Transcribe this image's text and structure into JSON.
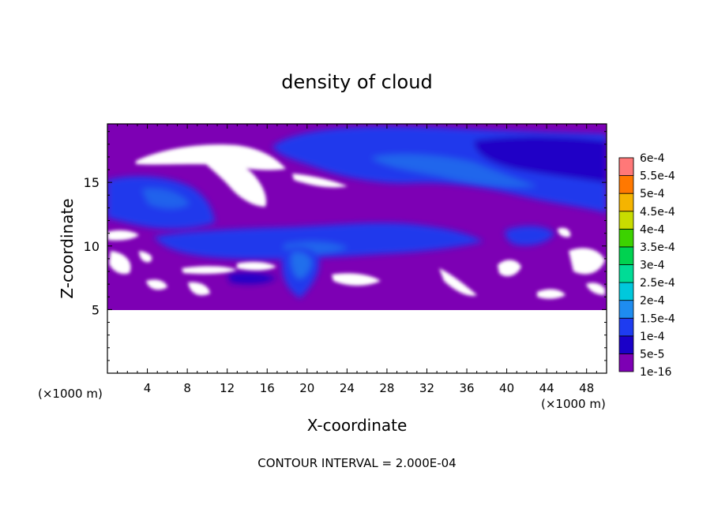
{
  "chart_data": {
    "type": "heatmap",
    "title": "density of cloud",
    "xlabel": "X-coordinate",
    "ylabel": "Z-coordinate",
    "x_unit": "(×1000 m)",
    "y_unit": "(×1000 m)",
    "xlim": [
      0,
      50
    ],
    "ylim": [
      0,
      19.6
    ],
    "x_ticks": [
      4,
      8,
      12,
      16,
      20,
      24,
      28,
      32,
      36,
      40,
      44,
      48
    ],
    "y_ticks": [
      5,
      10,
      15
    ],
    "footer": "CONTOUR INTERVAL = 2.000E-04",
    "colorbar": [
      {
        "label": "1e-16",
        "color": "#7d00b4"
      },
      {
        "label": "5e-5",
        "color": "#1a00c8"
      },
      {
        "label": "1e-4",
        "color": "#1e3cf0"
      },
      {
        "label": "1.5e-4",
        "color": "#1e8cf0"
      },
      {
        "label": "2e-4",
        "color": "#00c8dc"
      },
      {
        "label": "2.5e-4",
        "color": "#00dc96"
      },
      {
        "label": "3e-4",
        "color": "#00d250"
      },
      {
        "label": "3.5e-4",
        "color": "#3cd200"
      },
      {
        "label": "4e-4",
        "color": "#c8dc00"
      },
      {
        "label": "4.5e-4",
        "color": "#f5b400"
      },
      {
        "label": "5e-4",
        "color": "#ff7800"
      },
      {
        "label": "5.5e-4",
        "color": "#ff2800"
      },
      {
        "label": "6e-4",
        "color": "#ff7878"
      }
    ],
    "field_colors": {
      "background": "#7d00b4",
      "blue_dark": "#1a00c8",
      "blue_mid": "#1e3cf0",
      "blue_light": "#1e8cf0"
    }
  }
}
